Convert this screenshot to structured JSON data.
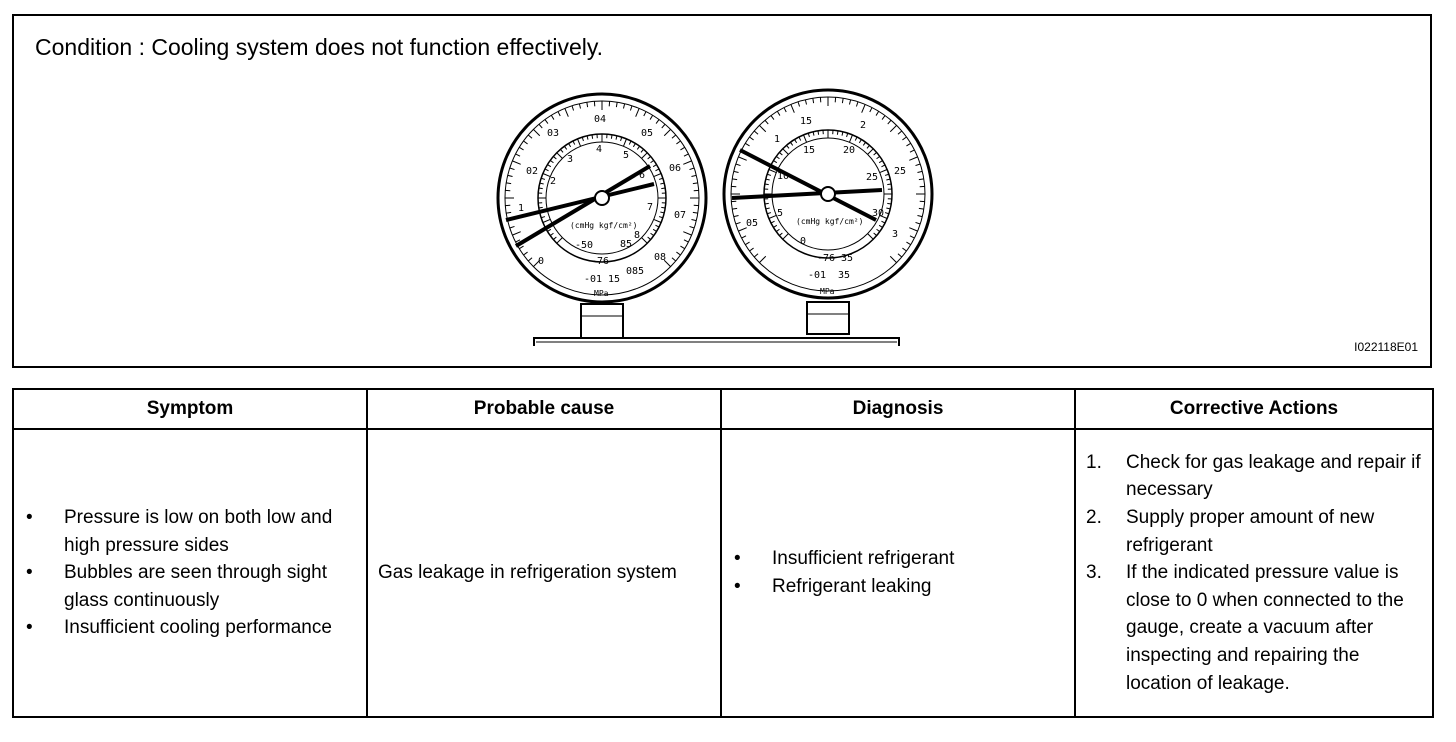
{
  "figure": {
    "condition": "Condition : Cooling system does not function effectively.",
    "figure_id": "I022118E01",
    "low_gauge": {
      "outer_labels": [
        "02",
        "03",
        "04",
        "05",
        "06",
        "07",
        "08",
        "085"
      ],
      "inner_labels": [
        "1",
        "2",
        "3",
        "4",
        "5",
        "6",
        "7",
        "8",
        "0",
        "-50",
        "85"
      ],
      "bottom_labels": [
        "-76",
        "-01",
        "15"
      ],
      "unit_label": "(cmHg kgf/cm²)",
      "mpa_label": "MPa"
    },
    "high_gauge": {
      "outer_labels": [
        "05",
        "1",
        "15",
        "2",
        "25",
        "3"
      ],
      "inner_labels": [
        "5",
        "10",
        "15",
        "20",
        "25",
        "30",
        "0"
      ],
      "bottom_labels": [
        "-76",
        "35",
        "-01",
        "35"
      ],
      "unit_label": "(cmHg kgf/cm²)",
      "mpa_label": "MPa"
    }
  },
  "table": {
    "headers": [
      "Symptom",
      "Probable cause",
      "Diagnosis",
      "Corrective Actions"
    ],
    "symptoms": [
      "Pressure is low on both low and high pressure sides",
      "Bubbles are seen through sight glass continuously",
      "Insufficient cooling performance"
    ],
    "probable_cause": "Gas leakage in refrigeration system",
    "diagnosis": [
      "Insufficient refrigerant",
      "Refrigerant leaking"
    ],
    "corrective_actions": [
      {
        "num": "1.",
        "text": "Check for gas leakage and repair if necessary"
      },
      {
        "num": "2.",
        "text": "Supply proper amount of new refrigerant"
      },
      {
        "num": "3.",
        "text": "If the indicated pressure value is close to 0 when connected to the gauge, create a vacuum after inspecting and repairing the location of leakage."
      }
    ]
  }
}
